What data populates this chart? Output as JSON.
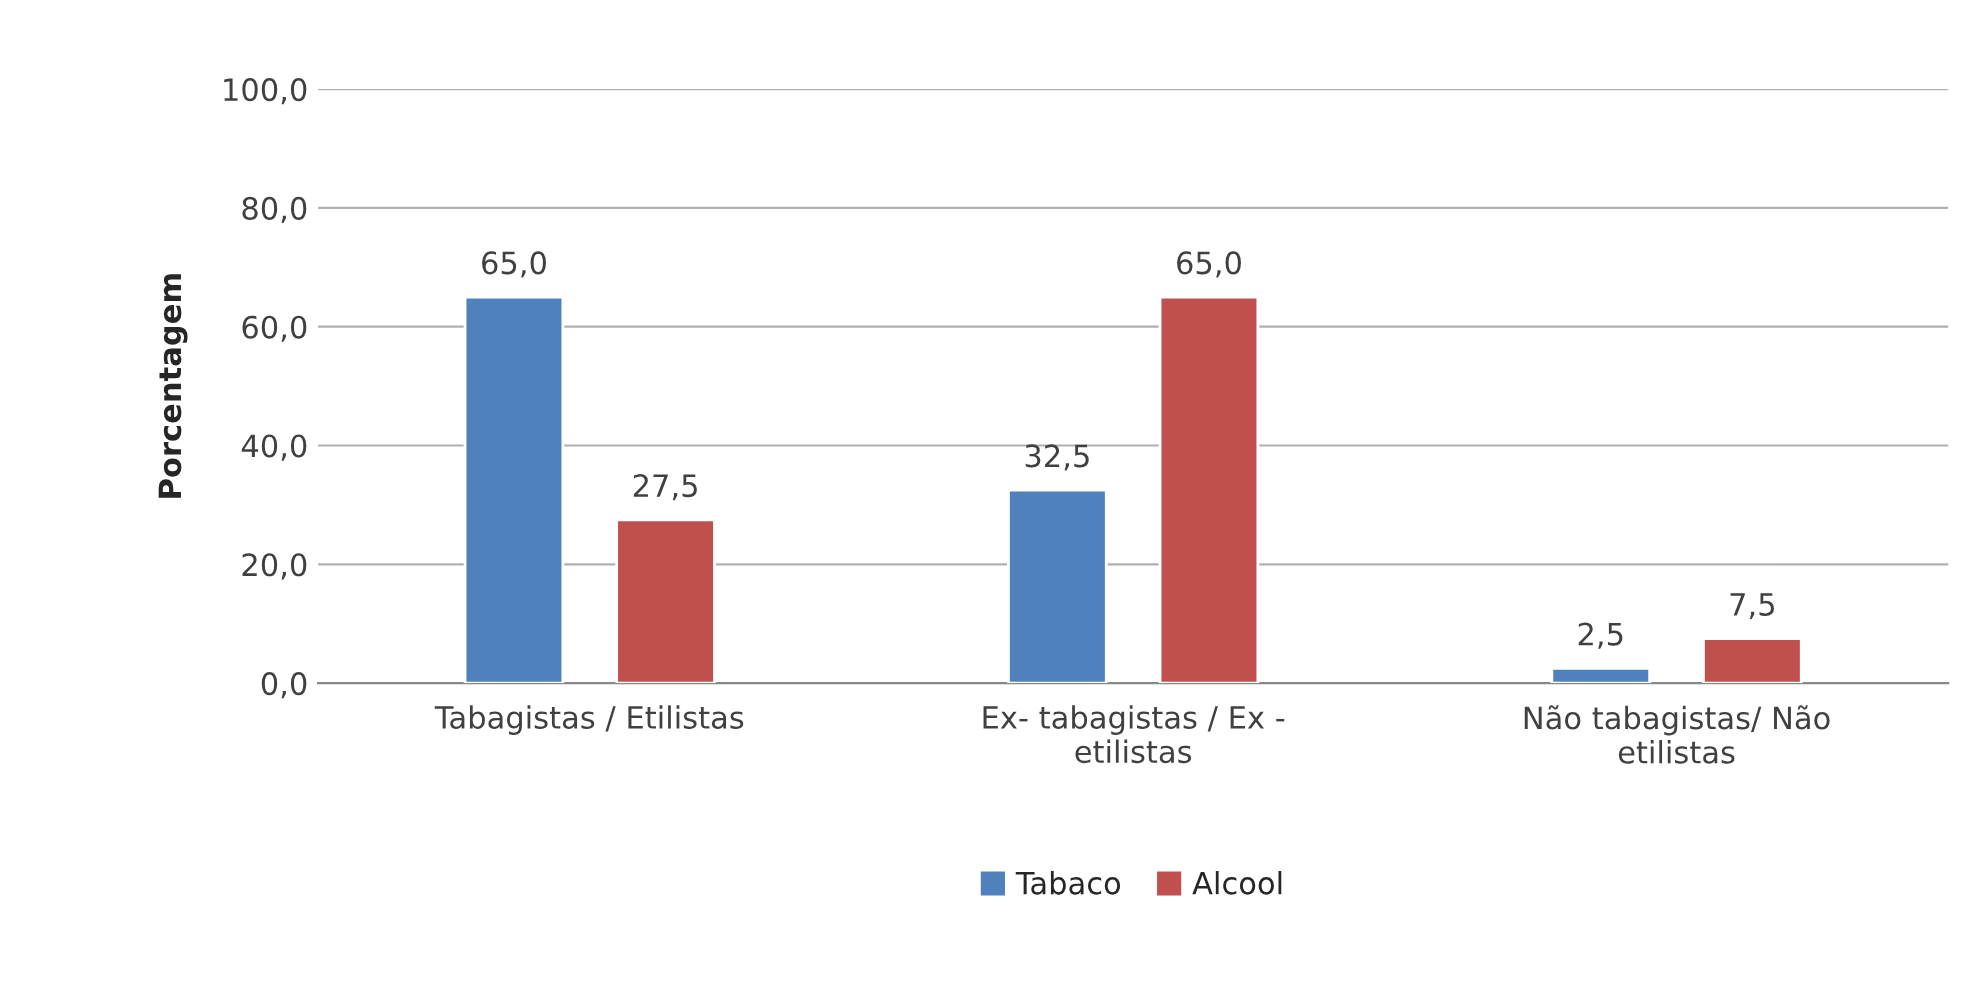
{
  "chart_data": {
    "type": "bar",
    "ylabel": "Porcentagem",
    "categories": [
      "Tabagistas / Etilistas",
      "Ex- tabagistas / Ex -\netilistas",
      "Não tabagistas/ Não\netilistas"
    ],
    "series": [
      {
        "name": "Tabaco",
        "color": "#4f81bd",
        "values": [
          65.0,
          32.5,
          2.5
        ],
        "value_labels": [
          "65,0",
          "32,5",
          "2,5"
        ]
      },
      {
        "name": "Alcool",
        "color": "#c0504d",
        "values": [
          27.5,
          65.0,
          7.5
        ],
        "value_labels": [
          "27,5",
          "65,0",
          "7,5"
        ]
      }
    ],
    "ylim": [
      0,
      100
    ],
    "yticks": [
      {
        "value": 0,
        "label": "0,0"
      },
      {
        "value": 20,
        "label": "20,0"
      },
      {
        "value": 40,
        "label": "40,0"
      },
      {
        "value": 60,
        "label": "60,0"
      },
      {
        "value": 80,
        "label": "80,0"
      },
      {
        "value": 100,
        "label": "100,0"
      }
    ],
    "grid": "y",
    "legend": "bottom"
  }
}
